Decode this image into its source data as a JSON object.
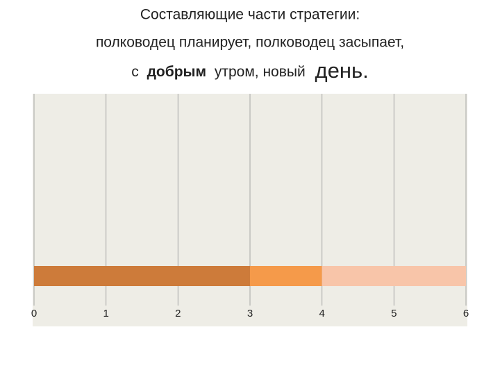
{
  "chart_data": {
    "type": "stacked-bar-horizontal",
    "title": [
      "Составляющие части стратегии:",
      "полководец планирует, полководец засыпает,",
      [
        "с",
        "добрым",
        "утром, новый",
        "день."
      ]
    ],
    "categories": [
      null
    ],
    "series": [
      {
        "color": "#cd7b3a",
        "values": [
          3
        ]
      },
      {
        "color": "#f59a4a",
        "values": [
          1
        ]
      },
      {
        "color": "#f8c5a9",
        "values": [
          2
        ]
      }
    ],
    "xlim": [
      0,
      6
    ],
    "xticks": [
      0,
      1,
      2,
      3,
      4,
      5,
      6
    ],
    "grid": true
  }
}
